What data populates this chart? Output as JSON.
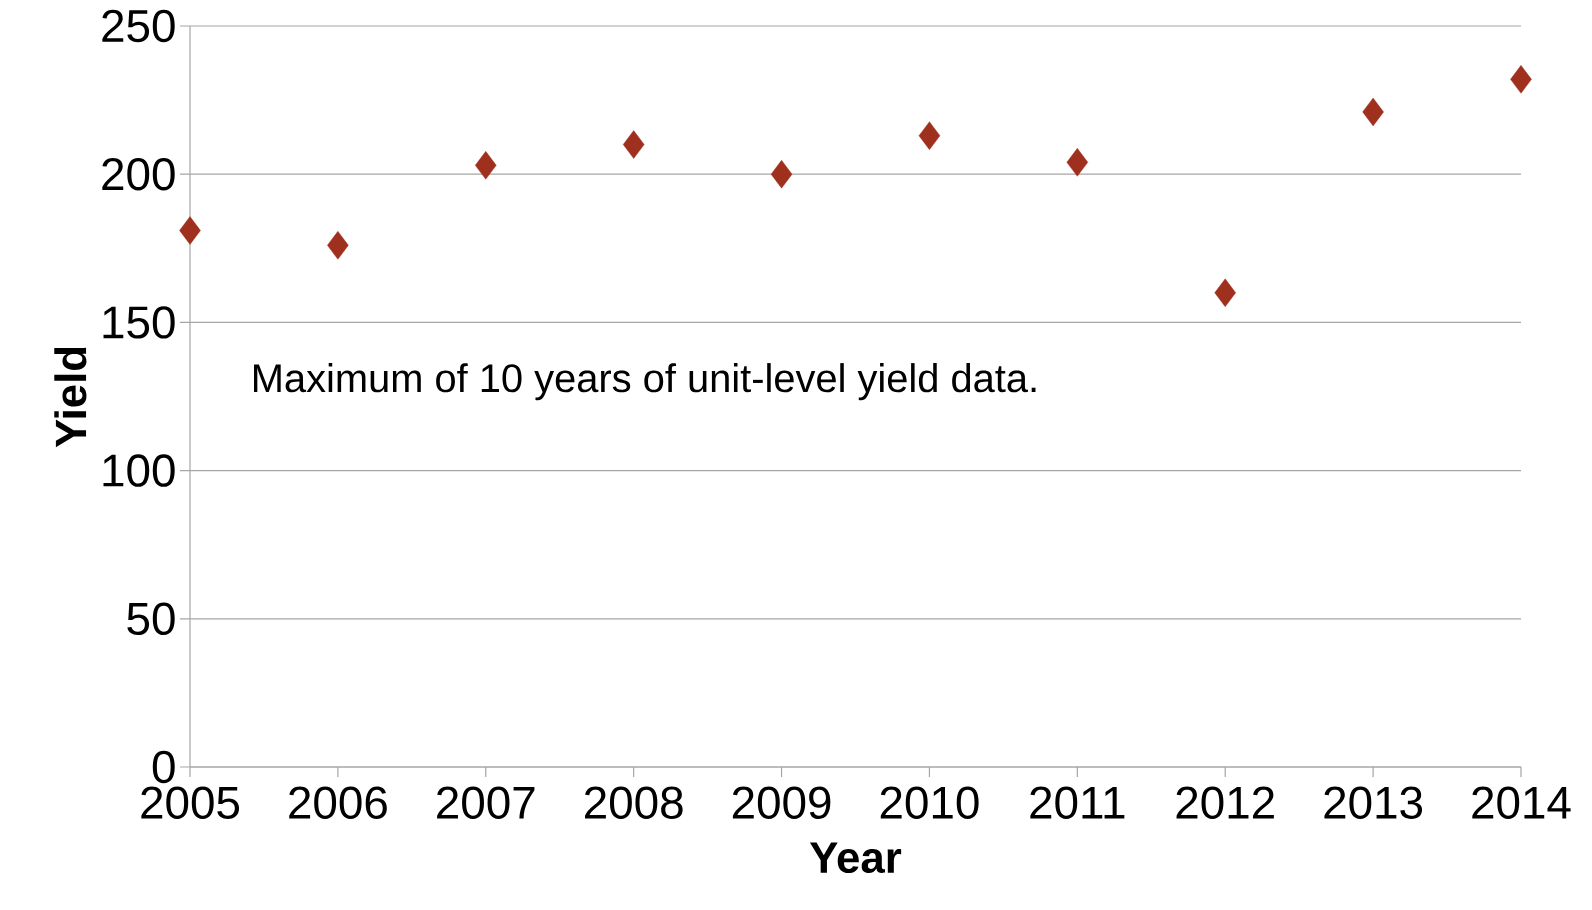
{
  "chart_data": {
    "type": "scatter",
    "xlabel": "Year",
    "ylabel": "Yield",
    "x": [
      2005,
      2006,
      2007,
      2008,
      2009,
      2010,
      2011,
      2012,
      2013,
      2014
    ],
    "values": [
      181,
      176,
      203,
      210,
      200,
      213,
      204,
      160,
      221,
      232
    ],
    "color": "#a0301e",
    "marker": "diamond",
    "xlim": [
      2005,
      2014
    ],
    "xticks": [
      2005,
      2006,
      2007,
      2008,
      2009,
      2010,
      2011,
      2012,
      2013,
      2014
    ],
    "ylim": [
      0,
      250
    ],
    "yticks": [
      0,
      50,
      100,
      150,
      200,
      250
    ],
    "grid": "y",
    "annotations": [
      "Maximum of 10 years of unit-level yield data."
    ]
  }
}
